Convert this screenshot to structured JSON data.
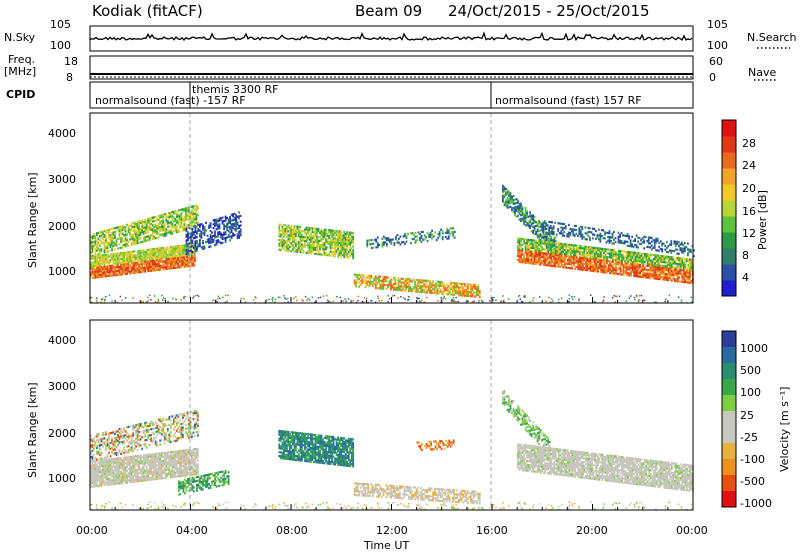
{
  "header": {
    "station": "Kodiak",
    "mode": "(fitACF)",
    "beam": "Beam 09",
    "date_range": "24/Oct/2015 - 25/Oct/2015"
  },
  "top_panels": {
    "nsky_label": "N.Sky",
    "nsky_ticks": [
      "10^5",
      "10^0"
    ],
    "nsearch_label": "N.Search",
    "nsearch_ticks": [
      "10^5",
      "10^0"
    ],
    "freq_label_line1": "Freq.",
    "freq_label_line2": "[MHz]",
    "freq_ticks": [
      "18",
      "8"
    ],
    "nave_label": "Nave",
    "nave_ticks": [
      "60",
      "0"
    ],
    "cpid_label": "CPID",
    "cpid_segments": [
      {
        "text": "themis 3300 RF"
      },
      {
        "text": "normalsound (fast) -157 RF"
      },
      {
        "text": "normalsound (fast) 157 RF"
      }
    ]
  },
  "colors": {
    "power_scale": [
      "#1f1fd0",
      "#2b4fa8",
      "#2f7f6a",
      "#2f9a48",
      "#5cc43a",
      "#b8d33a",
      "#f2c82a",
      "#f2a12a",
      "#e86a1c",
      "#de3a1a",
      "#e01010"
    ],
    "velocity_scale": [
      "#2a3f9a",
      "#2a6aa0",
      "#2a8f70",
      "#3aa84a",
      "#7ad040",
      "#c8c8c0",
      "#c8c8c0",
      "#e8b040",
      "#f09020",
      "#e85010",
      "#e01010"
    ],
    "scatter_gray": "#c8c6bc",
    "dash_line": "#aaaaaa"
  },
  "chart_data": [
    {
      "type": "heatmap",
      "title": "",
      "xlabel": "",
      "ylabel": "Slant Range [km]",
      "x_range": [
        "00:00",
        "00:00"
      ],
      "ylim": [
        180,
        4600
      ],
      "y_ticks": [
        "1000",
        "2000",
        "3000",
        "4000"
      ],
      "colorbar_label": "Power [dB]",
      "colorbar_ticks": [
        "4",
        "8",
        "12",
        "16",
        "20",
        "24",
        "28"
      ],
      "colorbar_range": [
        0,
        30
      ],
      "marker_times": [
        "04:00",
        "16:00"
      ]
    },
    {
      "type": "heatmap",
      "title": "",
      "xlabel": "Time UT",
      "ylabel": "Slant Range [km]",
      "x_ticks": [
        "00:00",
        "04:00",
        "08:00",
        "12:00",
        "16:00",
        "20:00",
        "00:00"
      ],
      "ylim": [
        180,
        4600
      ],
      "y_ticks": [
        "1000",
        "2000",
        "3000",
        "4000"
      ],
      "colorbar_label": "Velocity [m s⁻¹]",
      "colorbar_ticks": [
        "1000",
        "500",
        "100",
        "25",
        "-25",
        "-100",
        "-500",
        "-1000"
      ],
      "colorbar_range": [
        -1000,
        1000
      ],
      "marker_times": [
        "04:00",
        "16:00"
      ]
    }
  ]
}
